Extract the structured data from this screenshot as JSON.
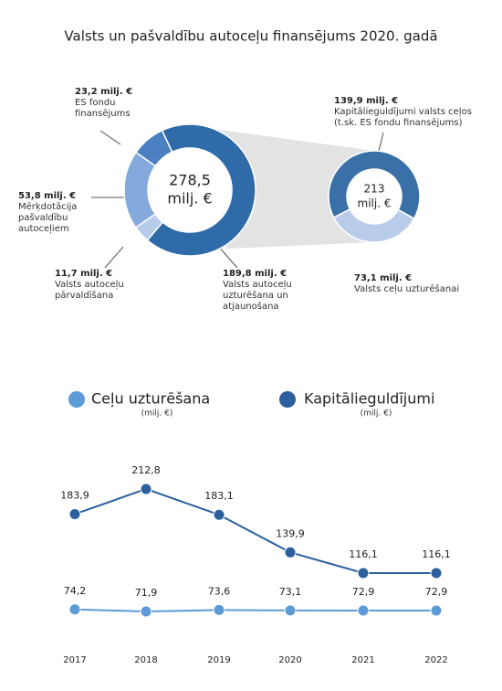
{
  "chart_data": [
    {
      "type": "donut",
      "title": "Valsts un pašvaldību autoceļu finansējums 2020. gadā",
      "center_label": [
        "278,5",
        "milj. €"
      ],
      "categories": [
        "Valsts autoceļu uzturēšana un atjaunošana",
        "Valsts autoceļu pārvaldīšana",
        "Mērķdotācija pašvaldību autoceļiem",
        "ES fondu finansējums"
      ],
      "values": [
        189.8,
        11.7,
        53.8,
        23.2
      ],
      "value_labels": [
        "189,8 milj. €",
        "11,7 milj. €",
        "53,8 milj. €",
        "23,2 milj. €"
      ],
      "colors": [
        "#2f6aa9",
        "#b7cbea",
        "#84a9dc",
        "#4a80c2"
      ]
    },
    {
      "type": "donut",
      "center_label": [
        "213",
        "milj. €"
      ],
      "categories": [
        "Kapitālieguldījumi valsts ceļos (t.sk. ES fondu finansējums)",
        "Valsts ceļu uzturēšanai"
      ],
      "values": [
        139.9,
        73.1
      ],
      "value_labels": [
        "139,9 milj. €",
        "73,1 milj. €"
      ],
      "colors": [
        "#3a70a8",
        "#b9cdea"
      ]
    },
    {
      "type": "line",
      "categories": [
        "2017",
        "2018",
        "2019",
        "2020",
        "2021",
        "2022"
      ],
      "ylim": [
        50,
        250
      ],
      "series": [
        {
          "name": "Ceļu uzturēšana",
          "unit": "(milj. €)",
          "color": "#5d9bd6",
          "values": [
            74.2,
            71.9,
            73.6,
            73.1,
            72.9,
            72.9
          ],
          "value_labels": [
            "74,2",
            "71,9",
            "73,6",
            "73,1",
            "72,9",
            "72,9"
          ]
        },
        {
          "name": "Kapitālieguldījumi",
          "unit": "(milj. €)",
          "color": "#2c5f9e",
          "values": [
            183.9,
            212.8,
            183.1,
            139.9,
            116.1,
            116.1
          ],
          "value_labels": [
            "183,9",
            "212,8",
            "183,1",
            "139,9",
            "116,1",
            "116,1"
          ]
        }
      ]
    }
  ]
}
